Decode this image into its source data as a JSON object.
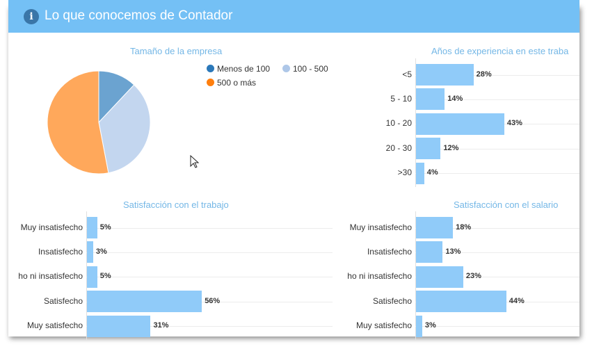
{
  "header": {
    "icon": "info-icon",
    "title": "Lo que conocemos de Contador"
  },
  "colors": {
    "header": "#74c0f5",
    "bar": "#90cbf9",
    "title": "#74b7e6"
  },
  "chart_data": [
    {
      "type": "pie",
      "title": "Tamaño de la empresa",
      "categories": [
        "Menos de 100",
        "100 - 500",
        "500 o más"
      ],
      "values": [
        12,
        35,
        53
      ],
      "colors": [
        "#6ba3d0",
        "#c3d6ef",
        "#ffa85b"
      ],
      "legend_colors": [
        "#2b78b9",
        "#aec7e8",
        "#ff7f0e"
      ],
      "legend": "right"
    },
    {
      "type": "bar",
      "orientation": "horizontal",
      "title": "Años de experiencia en este traba",
      "categories": [
        "<5",
        "5 - 10",
        "10 - 20",
        "20 - 30",
        ">30"
      ],
      "values": [
        28,
        14,
        43,
        12,
        4
      ],
      "value_suffix": "%",
      "xlim": [
        0,
        100
      ]
    },
    {
      "type": "bar",
      "orientation": "horizontal",
      "title": "Satisfacción con el trabajo",
      "categories": [
        "Muy insatisfecho",
        "Insatisfecho",
        "ho ni insatisfecho",
        "Satisfecho",
        "Muy satisfecho"
      ],
      "values": [
        5,
        3,
        5,
        56,
        31
      ],
      "value_suffix": "%",
      "xlim": [
        0,
        100
      ]
    },
    {
      "type": "bar",
      "orientation": "horizontal",
      "title": "Satisfacción con el salario",
      "categories": [
        "Muy insatisfecho",
        "Insatisfecho",
        "ho ni insatisfecho",
        "Satisfecho",
        "Muy satisfecho"
      ],
      "values": [
        18,
        13,
        23,
        44,
        3
      ],
      "value_suffix": "%",
      "xlim": [
        0,
        100
      ]
    }
  ]
}
